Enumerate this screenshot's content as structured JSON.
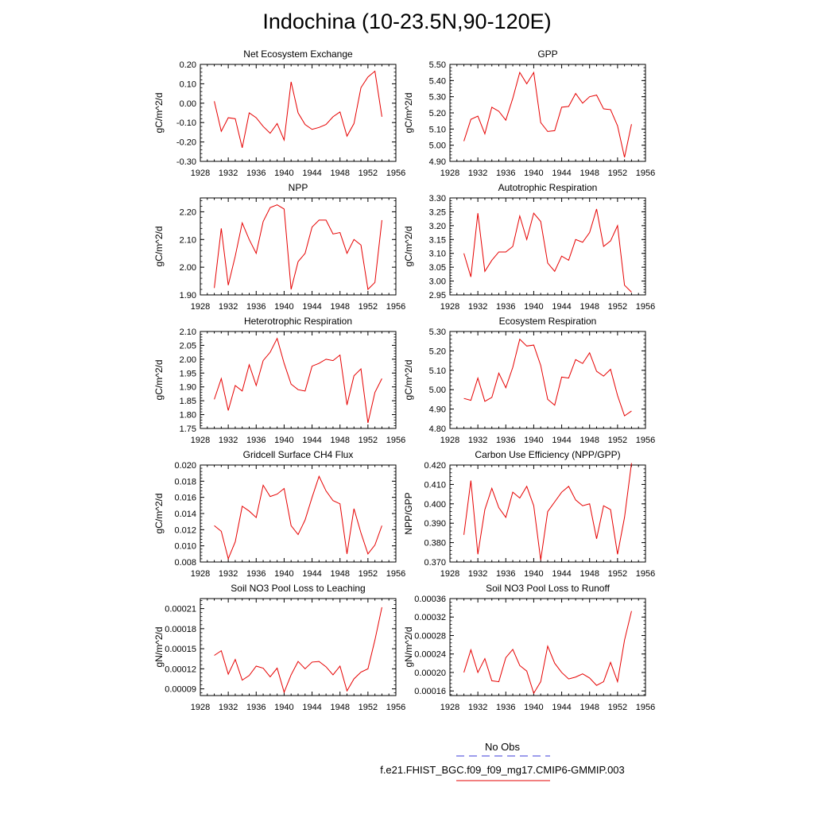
{
  "title": "Indochina (10-23.5N,90-120E)",
  "legend": {
    "obs_label": "No Obs",
    "obs_color": "#3b3bd9",
    "model_label": "f.e21.FHIST_BGC.f09_f09_mg17.CMIP6-GMMIP.003",
    "model_color": "#e60000"
  },
  "line_color": "#e60000",
  "chart_data": [
    {
      "type": "line",
      "title": "Net Ecosystem Exchange",
      "xlabel": "",
      "ylabel": "gC/m^2/d",
      "xlim": [
        1928,
        1956
      ],
      "xticks": [
        "1928",
        "1932",
        "1936",
        "1940",
        "1944",
        "1948",
        "1952",
        "1956"
      ],
      "ylim": [
        -0.3,
        0.2
      ],
      "yticks": [
        "-0.30",
        "-0.20",
        "-0.10",
        "0.00",
        "0.10",
        "0.20"
      ],
      "x": [
        1930,
        1931,
        1932,
        1933,
        1934,
        1935,
        1936,
        1937,
        1938,
        1939,
        1940,
        1941,
        1942,
        1943,
        1944,
        1945,
        1946,
        1947,
        1948,
        1949,
        1950,
        1951,
        1952,
        1953,
        1954
      ],
      "values": [
        0.01,
        -0.145,
        -0.075,
        -0.08,
        -0.23,
        -0.05,
        -0.075,
        -0.12,
        -0.155,
        -0.105,
        -0.19,
        0.11,
        -0.05,
        -0.11,
        -0.135,
        -0.125,
        -0.11,
        -0.07,
        -0.045,
        -0.17,
        -0.105,
        0.08,
        0.135,
        0.165,
        -0.07
      ]
    },
    {
      "type": "line",
      "title": "GPP",
      "xlabel": "",
      "ylabel": "gC/m^2/d",
      "xlim": [
        1928,
        1956
      ],
      "xticks": [
        "1928",
        "1932",
        "1936",
        "1940",
        "1944",
        "1948",
        "1952",
        "1956"
      ],
      "ylim": [
        4.9,
        5.5
      ],
      "yticks": [
        "4.90",
        "5.00",
        "5.10",
        "5.20",
        "5.30",
        "5.40",
        "5.50"
      ],
      "x": [
        1930,
        1931,
        1932,
        1933,
        1934,
        1935,
        1936,
        1937,
        1938,
        1939,
        1940,
        1941,
        1942,
        1943,
        1944,
        1945,
        1946,
        1947,
        1948,
        1949,
        1950,
        1951,
        1952,
        1953,
        1954
      ],
      "values": [
        5.025,
        5.16,
        5.18,
        5.07,
        5.235,
        5.21,
        5.155,
        5.29,
        5.45,
        5.38,
        5.45,
        5.14,
        5.085,
        5.09,
        5.235,
        5.24,
        5.32,
        5.26,
        5.3,
        5.31,
        5.225,
        5.22,
        5.12,
        4.925,
        5.13
      ]
    },
    {
      "type": "line",
      "title": "NPP",
      "xlabel": "",
      "ylabel": "gC/m^2/d",
      "xlim": [
        1928,
        1956
      ],
      "xticks": [
        "1928",
        "1932",
        "1936",
        "1940",
        "1944",
        "1948",
        "1952",
        "1956"
      ],
      "ylim": [
        1.9,
        2.25
      ],
      "yticks": [
        "1.90",
        "2.00",
        "2.10",
        "2.20"
      ],
      "x": [
        1930,
        1931,
        1932,
        1933,
        1934,
        1935,
        1936,
        1937,
        1938,
        1939,
        1940,
        1941,
        1942,
        1943,
        1944,
        1945,
        1946,
        1947,
        1948,
        1949,
        1950,
        1951,
        1952,
        1953,
        1954
      ],
      "values": [
        1.925,
        2.14,
        1.935,
        2.04,
        2.16,
        2.1,
        2.05,
        2.165,
        2.215,
        2.225,
        2.21,
        1.92,
        2.02,
        2.05,
        2.145,
        2.17,
        2.17,
        2.12,
        2.125,
        2.05,
        2.1,
        2.08,
        1.92,
        1.945,
        2.17
      ]
    },
    {
      "type": "line",
      "title": "Autotrophic Respiration",
      "xlabel": "",
      "ylabel": "gC/m^2/d",
      "xlim": [
        1928,
        1956
      ],
      "xticks": [
        "1928",
        "1932",
        "1936",
        "1940",
        "1944",
        "1948",
        "1952",
        "1956"
      ],
      "ylim": [
        2.95,
        3.3
      ],
      "yticks": [
        "2.95",
        "3.00",
        "3.05",
        "3.10",
        "3.15",
        "3.20",
        "3.25",
        "3.30"
      ],
      "x": [
        1930,
        1931,
        1932,
        1933,
        1934,
        1935,
        1936,
        1937,
        1938,
        1939,
        1940,
        1941,
        1942,
        1943,
        1944,
        1945,
        1946,
        1947,
        1948,
        1949,
        1950,
        1951,
        1952,
        1953,
        1954
      ],
      "values": [
        3.1,
        3.015,
        3.245,
        3.035,
        3.075,
        3.105,
        3.105,
        3.125,
        3.235,
        3.15,
        3.245,
        3.215,
        3.065,
        3.035,
        3.09,
        3.075,
        3.15,
        3.14,
        3.175,
        3.26,
        3.125,
        3.145,
        3.2,
        2.985,
        2.96
      ]
    },
    {
      "type": "line",
      "title": "Heterotrophic Respiration",
      "xlabel": "",
      "ylabel": "gC/m^2/d",
      "xlim": [
        1928,
        1956
      ],
      "xticks": [
        "1928",
        "1932",
        "1936",
        "1940",
        "1944",
        "1948",
        "1952",
        "1956"
      ],
      "ylim": [
        1.75,
        2.1
      ],
      "yticks": [
        "1.75",
        "1.80",
        "1.85",
        "1.90",
        "1.95",
        "2.00",
        "2.05",
        "2.10"
      ],
      "x": [
        1930,
        1931,
        1932,
        1933,
        1934,
        1935,
        1936,
        1937,
        1938,
        1939,
        1940,
        1941,
        1942,
        1943,
        1944,
        1945,
        1946,
        1947,
        1948,
        1949,
        1950,
        1951,
        1952,
        1953,
        1954
      ],
      "values": [
        1.855,
        1.93,
        1.815,
        1.905,
        1.885,
        1.98,
        1.905,
        1.995,
        2.025,
        2.075,
        1.985,
        1.91,
        1.89,
        1.885,
        1.975,
        1.985,
        2.0,
        1.995,
        2.015,
        1.835,
        1.94,
        1.965,
        1.77,
        1.88,
        1.93
      ]
    },
    {
      "type": "line",
      "title": "Ecosystem Respiration",
      "xlabel": "",
      "ylabel": "gC/m^2/d",
      "xlim": [
        1928,
        1956
      ],
      "xticks": [
        "1928",
        "1932",
        "1936",
        "1940",
        "1944",
        "1948",
        "1952",
        "1956"
      ],
      "ylim": [
        4.8,
        5.3
      ],
      "yticks": [
        "4.80",
        "4.90",
        "5.00",
        "5.10",
        "5.20",
        "5.30"
      ],
      "x": [
        1930,
        1931,
        1932,
        1933,
        1934,
        1935,
        1936,
        1937,
        1938,
        1939,
        1940,
        1941,
        1942,
        1943,
        1944,
        1945,
        1946,
        1947,
        1948,
        1949,
        1950,
        1951,
        1952,
        1953,
        1954
      ],
      "values": [
        4.955,
        4.945,
        5.06,
        4.94,
        4.96,
        5.085,
        5.01,
        5.115,
        5.26,
        5.225,
        5.23,
        5.125,
        4.95,
        4.92,
        5.065,
        5.06,
        5.155,
        5.135,
        5.19,
        5.095,
        5.07,
        5.105,
        4.97,
        4.865,
        4.89
      ]
    },
    {
      "type": "line",
      "title": "Gridcell Surface CH4 Flux",
      "xlabel": "",
      "ylabel": "gC/m^2/d",
      "xlim": [
        1928,
        1956
      ],
      "xticks": [
        "1928",
        "1932",
        "1936",
        "1940",
        "1944",
        "1948",
        "1952",
        "1956"
      ],
      "ylim": [
        0.008,
        0.02
      ],
      "yticks": [
        "0.008",
        "0.010",
        "0.012",
        "0.014",
        "0.016",
        "0.018",
        "0.020"
      ],
      "x": [
        1930,
        1931,
        1932,
        1933,
        1934,
        1935,
        1936,
        1937,
        1938,
        1939,
        1940,
        1941,
        1942,
        1943,
        1944,
        1945,
        1946,
        1947,
        1948,
        1949,
        1950,
        1951,
        1952,
        1953,
        1954
      ],
      "values": [
        0.0125,
        0.0118,
        0.0084,
        0.0105,
        0.0149,
        0.0143,
        0.0135,
        0.0175,
        0.0161,
        0.0164,
        0.0171,
        0.0125,
        0.0114,
        0.0132,
        0.016,
        0.0186,
        0.0168,
        0.0156,
        0.0152,
        0.009,
        0.0146,
        0.0116,
        0.009,
        0.0101,
        0.0125
      ]
    },
    {
      "type": "line",
      "title": "Carbon Use Efficiency (NPP/GPP)",
      "xlabel": "",
      "ylabel": "NPP/GPP",
      "xlim": [
        1928,
        1956
      ],
      "xticks": [
        "1928",
        "1932",
        "1936",
        "1940",
        "1944",
        "1948",
        "1952",
        "1956"
      ],
      "ylim": [
        0.37,
        0.42
      ],
      "yticks": [
        "0.370",
        "0.380",
        "0.390",
        "0.400",
        "0.410",
        "0.420"
      ],
      "x": [
        1930,
        1931,
        1932,
        1933,
        1934,
        1935,
        1936,
        1937,
        1938,
        1939,
        1940,
        1941,
        1942,
        1943,
        1944,
        1945,
        1946,
        1947,
        1948,
        1949,
        1950,
        1951,
        1952,
        1953,
        1954
      ],
      "values": [
        0.384,
        0.412,
        0.374,
        0.397,
        0.408,
        0.398,
        0.393,
        0.406,
        0.403,
        0.409,
        0.399,
        0.371,
        0.396,
        0.401,
        0.406,
        0.409,
        0.402,
        0.399,
        0.4,
        0.382,
        0.399,
        0.397,
        0.374,
        0.393,
        0.421
      ]
    },
    {
      "type": "line",
      "title": "Soil NO3 Pool Loss to Leaching",
      "xlabel": "",
      "ylabel": "gN/m^2/d",
      "xlim": [
        1928,
        1956
      ],
      "xticks": [
        "1928",
        "1932",
        "1936",
        "1940",
        "1944",
        "1948",
        "1952",
        "1956"
      ],
      "ylim": [
        8e-05,
        0.000225
      ],
      "yticks": [
        "0.00009",
        "0.00012",
        "0.00015",
        "0.00018",
        "0.00021"
      ],
      "x": [
        1930,
        1931,
        1932,
        1933,
        1934,
        1935,
        1936,
        1937,
        1938,
        1939,
        1940,
        1941,
        1942,
        1943,
        1944,
        1945,
        1946,
        1947,
        1948,
        1949,
        1950,
        1951,
        1952,
        1953,
        1954
      ],
      "values": [
        0.00014,
        0.000147,
        0.000112,
        0.000134,
        0.000103,
        0.00011,
        0.000124,
        0.000121,
        0.000108,
        0.000121,
        8.5e-05,
        0.000111,
        0.000131,
        0.00012,
        0.00013,
        0.000131,
        0.000123,
        0.000111,
        0.000124,
        8.7e-05,
        0.000105,
        0.000115,
        0.00012,
        0.000163,
        0.000212
      ]
    },
    {
      "type": "line",
      "title": "Soil NO3 Pool Loss to Runoff",
      "xlabel": "",
      "ylabel": "gN/m^2/d",
      "xlim": [
        1928,
        1956
      ],
      "xticks": [
        "1928",
        "1932",
        "1936",
        "1940",
        "1944",
        "1948",
        "1952",
        "1956"
      ],
      "ylim": [
        0.00015,
        0.00036
      ],
      "yticks": [
        "0.00016",
        "0.00020",
        "0.00024",
        "0.00028",
        "0.00032",
        "0.00036"
      ],
      "x": [
        1930,
        1931,
        1932,
        1933,
        1934,
        1935,
        1936,
        1937,
        1938,
        1939,
        1940,
        1941,
        1942,
        1943,
        1944,
        1945,
        1946,
        1947,
        1948,
        1949,
        1950,
        1951,
        1952,
        1953,
        1954
      ],
      "values": [
        0.0002,
        0.000249,
        0.0002,
        0.00023,
        0.000182,
        0.00018,
        0.000232,
        0.00025,
        0.000215,
        0.000203,
        0.000155,
        0.00018,
        0.000257,
        0.00022,
        0.0002,
        0.000186,
        0.00019,
        0.000197,
        0.000188,
        0.000172,
        0.00018,
        0.000222,
        0.00018,
        0.00027,
        0.000333
      ]
    }
  ]
}
